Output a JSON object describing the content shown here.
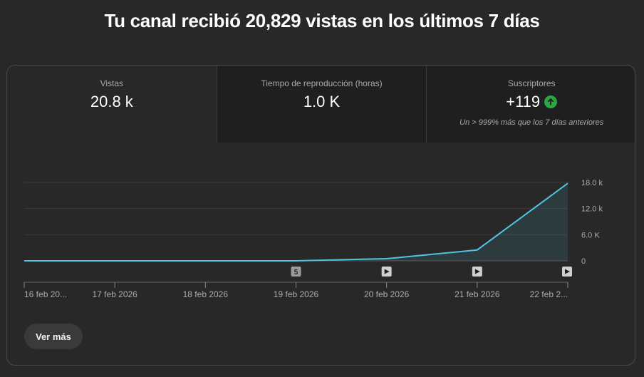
{
  "headline": "Tu canal recibió 20,829 vistas en los últimos 7 días",
  "tabs": [
    {
      "label": "Vistas",
      "value": "20.8 k"
    },
    {
      "label": "Tiempo de reproducción (horas)",
      "value": "1.0 K"
    },
    {
      "label": "Suscriptores",
      "value": "+119",
      "note": "Un > 999% más que los 7 días anteriores",
      "trend_icon": "arrow-up-icon",
      "trend_color": "#2ba640"
    }
  ],
  "more_button": "Ver más",
  "chart_data": {
    "type": "area",
    "categories": [
      "16 feb 20...",
      "17 feb 2026",
      "18 feb 2026",
      "19 feb 2026",
      "20 feb 2026",
      "21 feb 2026",
      "22 feb 2..."
    ],
    "values": [
      0,
      0,
      0,
      0,
      500,
      2500,
      17800
    ],
    "y_ticks": [
      "18.0 k",
      "12.0 k",
      "6.0 K",
      "0"
    ],
    "ylim": [
      0,
      18000
    ],
    "grid": true,
    "line_color": "#4fc3e0",
    "markers": [
      {
        "category_index": 3,
        "label": "5",
        "kind": "count"
      },
      {
        "category_index": 4,
        "label": "",
        "kind": "play-icon"
      },
      {
        "category_index": 5,
        "label": "",
        "kind": "play-icon"
      },
      {
        "category_index": 6,
        "label": "",
        "kind": "play-icon"
      }
    ]
  }
}
